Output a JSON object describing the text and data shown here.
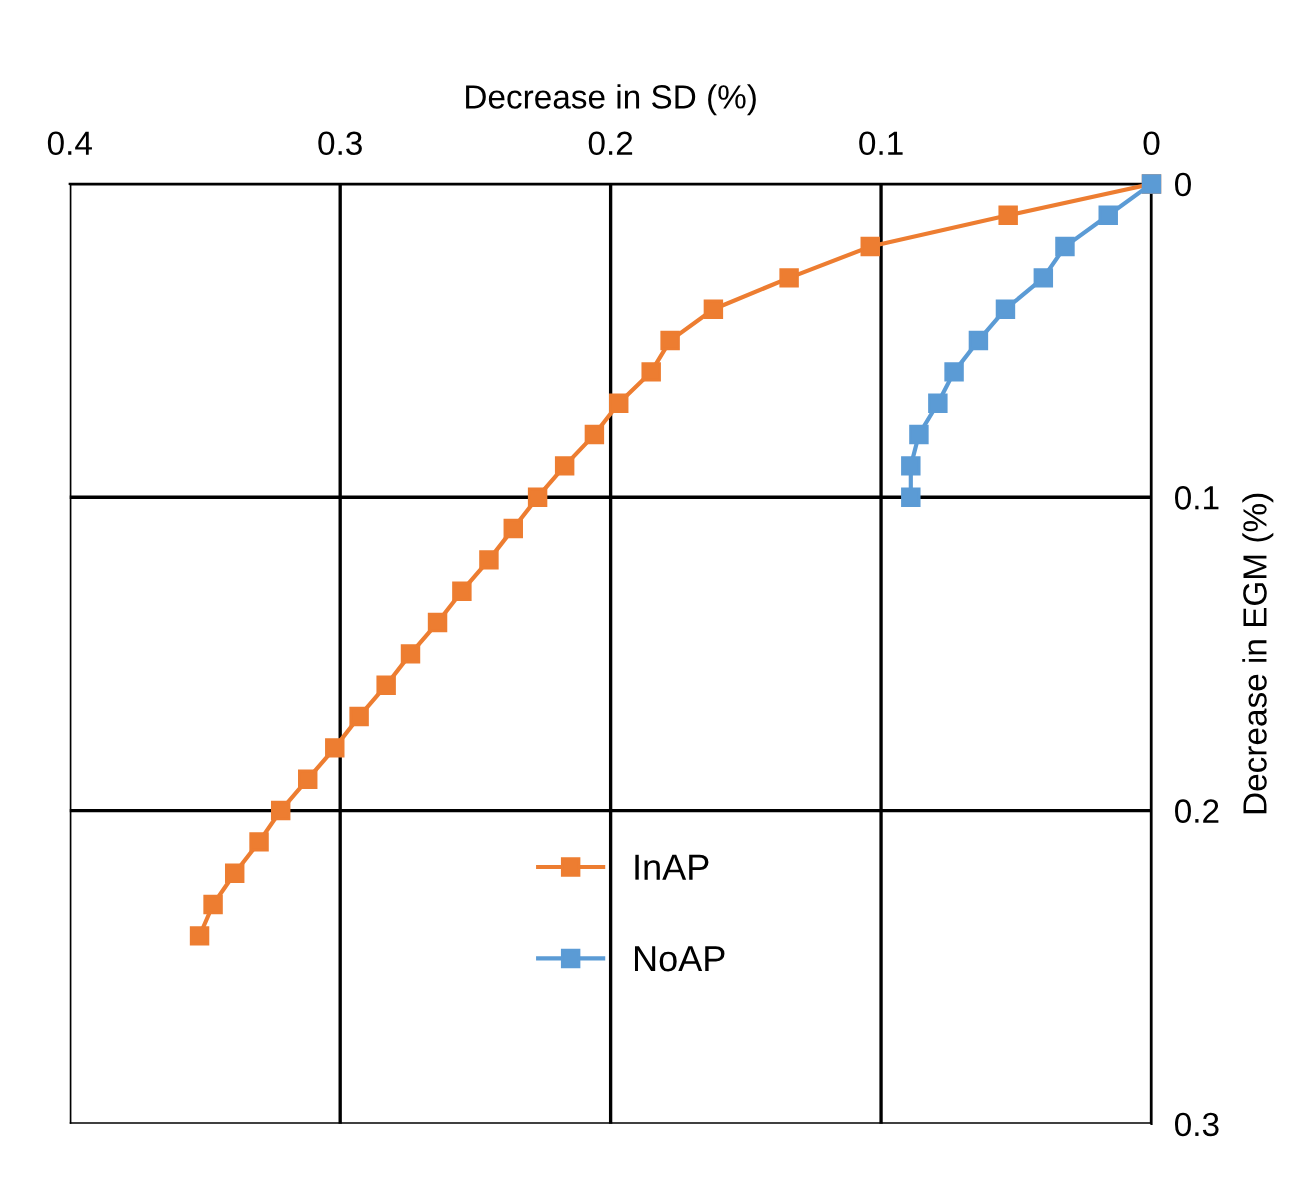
{
  "chart_data": {
    "type": "line",
    "xlabel": "Decrease in SD (%)",
    "ylabel": "Decrease in EGM (%)",
    "xlim": [
      0.4,
      0
    ],
    "ylim": [
      0.3,
      0
    ],
    "xticks": [
      0.4,
      0.3,
      0.2,
      0.1,
      0
    ],
    "yticks": [
      0,
      0.1,
      0.2,
      0.3
    ],
    "grid": true,
    "legend": "bottom",
    "marker": "square",
    "line_style": "solid",
    "series": [
      {
        "name": "InAP",
        "color": "#ed7d31",
        "x": [
          0,
          0.053,
          0.104,
          0.134,
          0.162,
          0.178,
          0.185,
          0.197,
          0.206,
          0.217,
          0.227,
          0.236,
          0.245,
          0.255,
          0.264,
          0.274,
          0.283,
          0.293,
          0.302,
          0.312,
          0.322,
          0.33,
          0.339,
          0.347,
          0.352
        ],
        "values": [
          0,
          0.01,
          0.02,
          0.03,
          0.04,
          0.05,
          0.06,
          0.07,
          0.08,
          0.09,
          0.1,
          0.11,
          0.12,
          0.13,
          0.14,
          0.15,
          0.16,
          0.17,
          0.18,
          0.19,
          0.2,
          0.21,
          0.22,
          0.23,
          0.24
        ]
      },
      {
        "name": "NoAP",
        "color": "#5b9bd5",
        "x": [
          0,
          0.016,
          0.032,
          0.04,
          0.054,
          0.064,
          0.073,
          0.079,
          0.086,
          0.089,
          0.089
        ],
        "values": [
          0,
          0.01,
          0.02,
          0.03,
          0.04,
          0.05,
          0.06,
          0.07,
          0.08,
          0.09,
          0.1
        ]
      }
    ]
  }
}
